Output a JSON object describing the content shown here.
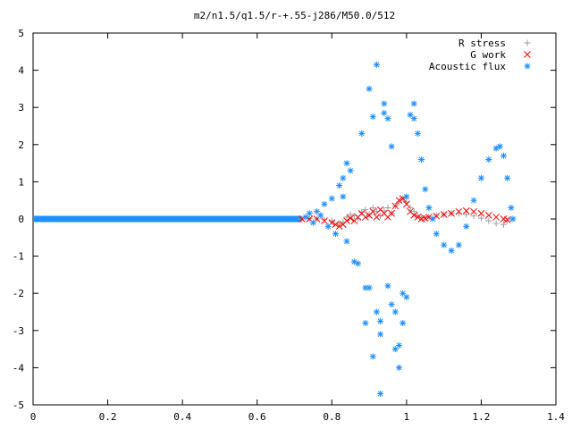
{
  "chart_data": {
    "type": "scatter",
    "title": "m2/n1.5/q1.5/r-+.55-j286/M50.0/512",
    "xlabel": "",
    "ylabel": "",
    "xlim": [
      0,
      1.4
    ],
    "ylim": [
      -5,
      5
    ],
    "x_ticks": [
      "0",
      "0.2",
      "0.4",
      "0.6",
      "0.8",
      "1",
      "1.2",
      "1.4"
    ],
    "y_ticks": [
      "-5",
      "-4",
      "-3",
      "-2",
      "-1",
      "0",
      "1",
      "2",
      "3",
      "4",
      "5"
    ],
    "grid": false,
    "legend_position": "top-right",
    "series": [
      {
        "name": "R stress",
        "marker": "plus",
        "color": "#a0a0a0",
        "points": [
          [
            0.72,
            0.0
          ],
          [
            0.74,
            0.01
          ],
          [
            0.76,
            0.0
          ],
          [
            0.78,
            -0.02
          ],
          [
            0.8,
            -0.05
          ],
          [
            0.82,
            -0.12
          ],
          [
            0.83,
            -0.08
          ],
          [
            0.84,
            0.05
          ],
          [
            0.85,
            0.12
          ],
          [
            0.86,
            0.08
          ],
          [
            0.87,
            0.0
          ],
          [
            0.88,
            0.18
          ],
          [
            0.89,
            0.25
          ],
          [
            0.9,
            0.12
          ],
          [
            0.91,
            0.3
          ],
          [
            0.92,
            0.2
          ],
          [
            0.93,
            0.08
          ],
          [
            0.94,
            0.22
          ],
          [
            0.95,
            0.3
          ],
          [
            0.96,
            0.15
          ],
          [
            0.97,
            0.35
          ],
          [
            0.98,
            0.45
          ],
          [
            0.99,
            0.55
          ],
          [
            1.0,
            0.45
          ],
          [
            1.01,
            0.3
          ],
          [
            1.02,
            0.2
          ],
          [
            1.03,
            0.1
          ],
          [
            1.04,
            0.05
          ],
          [
            1.05,
            0.03
          ],
          [
            1.06,
            0.05
          ],
          [
            1.08,
            0.1
          ],
          [
            1.1,
            0.12
          ],
          [
            1.12,
            0.15
          ],
          [
            1.14,
            0.15
          ],
          [
            1.16,
            0.12
          ],
          [
            1.18,
            0.08
          ],
          [
            1.2,
            0.02
          ],
          [
            1.22,
            -0.05
          ],
          [
            1.24,
            -0.12
          ],
          [
            1.26,
            -0.15
          ],
          [
            1.27,
            -0.05
          ],
          [
            1.28,
            0.0
          ]
        ]
      },
      {
        "name": "G work",
        "marker": "cross",
        "color": "#ff0000",
        "points": [
          [
            0.72,
            0.0
          ],
          [
            0.74,
            0.0
          ],
          [
            0.76,
            0.0
          ],
          [
            0.78,
            -0.05
          ],
          [
            0.8,
            -0.1
          ],
          [
            0.81,
            -0.15
          ],
          [
            0.82,
            -0.2
          ],
          [
            0.83,
            -0.15
          ],
          [
            0.84,
            -0.05
          ],
          [
            0.85,
            0.02
          ],
          [
            0.86,
            -0.05
          ],
          [
            0.87,
            0.05
          ],
          [
            0.88,
            0.15
          ],
          [
            0.89,
            0.05
          ],
          [
            0.9,
            0.1
          ],
          [
            0.91,
            0.2
          ],
          [
            0.92,
            0.05
          ],
          [
            0.93,
            0.25
          ],
          [
            0.94,
            0.15
          ],
          [
            0.95,
            0.05
          ],
          [
            0.96,
            0.15
          ],
          [
            0.97,
            0.35
          ],
          [
            0.98,
            0.5
          ],
          [
            0.99,
            0.55
          ],
          [
            1.0,
            0.4
          ],
          [
            1.01,
            0.2
          ],
          [
            1.02,
            0.1
          ],
          [
            1.03,
            0.05
          ],
          [
            1.04,
            0.0
          ],
          [
            1.05,
            0.02
          ],
          [
            1.06,
            0.05
          ],
          [
            1.08,
            0.08
          ],
          [
            1.1,
            0.12
          ],
          [
            1.12,
            0.15
          ],
          [
            1.14,
            0.2
          ],
          [
            1.16,
            0.22
          ],
          [
            1.18,
            0.2
          ],
          [
            1.2,
            0.15
          ],
          [
            1.22,
            0.1
          ],
          [
            1.24,
            0.05
          ],
          [
            1.26,
            0.0
          ],
          [
            1.27,
            -0.02
          ]
        ]
      },
      {
        "name": "Acoustic flux",
        "marker": "star",
        "color": "#1e90ff",
        "points": [
          [
            0.73,
            0.05
          ],
          [
            0.74,
            0.15
          ],
          [
            0.75,
            -0.1
          ],
          [
            0.76,
            0.2
          ],
          [
            0.77,
            0.1
          ],
          [
            0.78,
            0.4
          ],
          [
            0.79,
            -0.2
          ],
          [
            0.8,
            0.55
          ],
          [
            0.81,
            -0.4
          ],
          [
            0.82,
            0.9
          ],
          [
            0.83,
            0.6
          ],
          [
            0.83,
            1.1
          ],
          [
            0.84,
            1.5
          ],
          [
            0.84,
            -0.6
          ],
          [
            0.85,
            1.3
          ],
          [
            0.86,
            -1.15
          ],
          [
            0.87,
            -1.2
          ],
          [
            0.88,
            2.3
          ],
          [
            0.89,
            -1.85
          ],
          [
            0.89,
            -2.8
          ],
          [
            0.9,
            3.5
          ],
          [
            0.9,
            -1.85
          ],
          [
            0.91,
            2.75
          ],
          [
            0.91,
            -3.7
          ],
          [
            0.92,
            4.15
          ],
          [
            0.92,
            -2.5
          ],
          [
            0.93,
            -2.75
          ],
          [
            0.93,
            -3.1
          ],
          [
            0.93,
            -4.7
          ],
          [
            0.94,
            3.1
          ],
          [
            0.94,
            2.85
          ],
          [
            0.95,
            2.7
          ],
          [
            0.95,
            -1.8
          ],
          [
            0.96,
            1.95
          ],
          [
            0.96,
            -2.3
          ],
          [
            0.97,
            -2.5
          ],
          [
            0.97,
            -3.5
          ],
          [
            0.98,
            -3.4
          ],
          [
            0.98,
            -4.0
          ],
          [
            0.99,
            -2.0
          ],
          [
            0.99,
            -2.8
          ],
          [
            1.0,
            -2.1
          ],
          [
            1.0,
            0.6
          ],
          [
            1.01,
            2.8
          ],
          [
            1.02,
            3.1
          ],
          [
            1.02,
            2.7
          ],
          [
            1.03,
            2.3
          ],
          [
            1.04,
            1.6
          ],
          [
            1.05,
            0.8
          ],
          [
            1.06,
            0.3
          ],
          [
            1.07,
            0.0
          ],
          [
            1.08,
            -0.4
          ],
          [
            1.1,
            -0.7
          ],
          [
            1.12,
            -0.85
          ],
          [
            1.14,
            -0.7
          ],
          [
            1.16,
            -0.2
          ],
          [
            1.18,
            0.5
          ],
          [
            1.2,
            1.1
          ],
          [
            1.22,
            1.6
          ],
          [
            1.24,
            1.9
          ],
          [
            1.25,
            1.95
          ],
          [
            1.26,
            1.7
          ],
          [
            1.27,
            1.1
          ],
          [
            1.28,
            0.3
          ],
          [
            1.285,
            0.0
          ]
        ]
      }
    ]
  }
}
